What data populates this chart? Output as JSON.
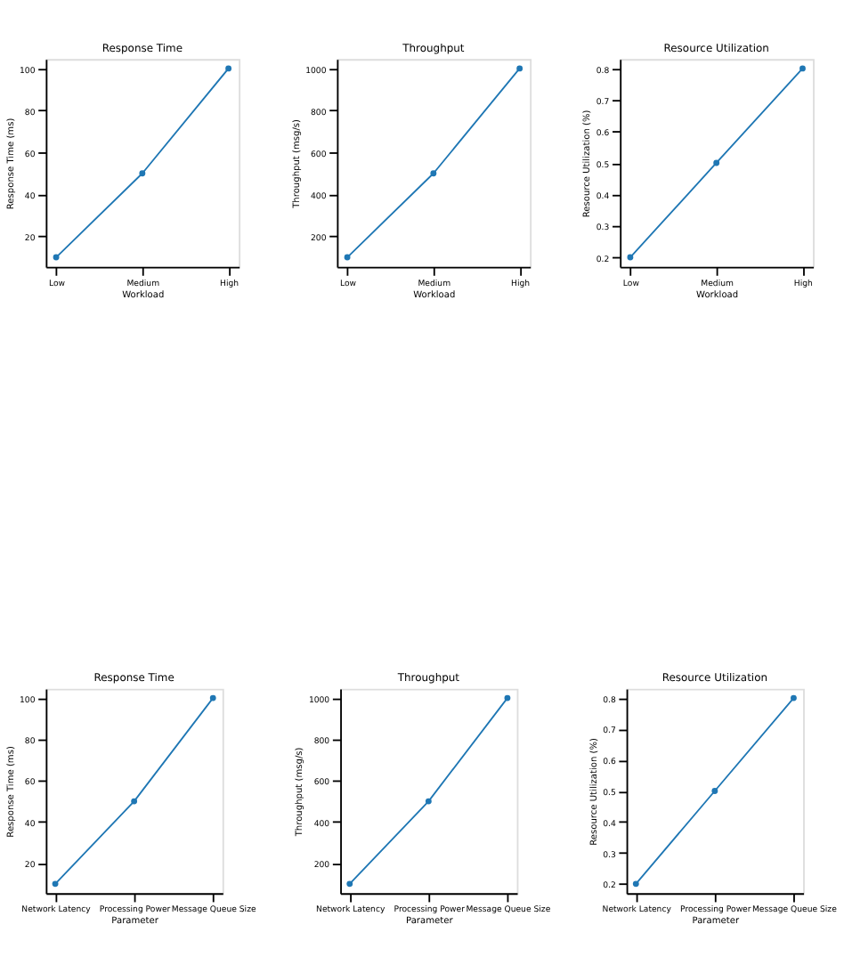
{
  "chart_data": [
    {
      "type": "line",
      "title": "Response Time",
      "xlabel": "Workload",
      "ylabel": "Response Time (ms)",
      "categories": [
        "Low",
        "Medium",
        "High"
      ],
      "series": [
        {
          "color": "#1f77b4",
          "values": [
            10,
            50,
            100
          ]
        }
      ],
      "ylim": [
        5.5,
        104.5
      ],
      "yticks": [
        20,
        40,
        60,
        80,
        100
      ],
      "marker": "circle",
      "line_style": "solid",
      "grid": false
    },
    {
      "type": "line",
      "title": "Throughput",
      "xlabel": "Workload",
      "ylabel": "Throughput (msg/s)",
      "categories": [
        "Low",
        "Medium",
        "High"
      ],
      "series": [
        {
          "color": "#1f77b4",
          "values": [
            100,
            500,
            1000
          ]
        }
      ],
      "ylim": [
        55,
        1045
      ],
      "yticks": [
        200,
        400,
        600,
        800,
        1000
      ],
      "marker": "circle",
      "line_style": "solid",
      "grid": false
    },
    {
      "type": "line",
      "title": "Resource Utilization",
      "xlabel": "Workload",
      "ylabel": "Resource Utilization (%)",
      "categories": [
        "Low",
        "Medium",
        "High"
      ],
      "series": [
        {
          "color": "#1f77b4",
          "values": [
            0.2,
            0.5,
            0.8
          ]
        }
      ],
      "ylim": [
        0.17,
        0.83
      ],
      "yticks": [
        0.2,
        0.3,
        0.4,
        0.5,
        0.6,
        0.7,
        0.8
      ],
      "marker": "circle",
      "line_style": "solid",
      "grid": false
    },
    {
      "type": "line",
      "title": "Response Time",
      "xlabel": "Parameter",
      "ylabel": "Response Time (ms)",
      "categories": [
        "Network Latency",
        "Processing Power",
        "Message Queue Size"
      ],
      "series": [
        {
          "color": "#1f77b4",
          "values": [
            10,
            50,
            100
          ]
        }
      ],
      "ylim": [
        5.5,
        104.5
      ],
      "yticks": [
        20,
        40,
        60,
        80,
        100
      ],
      "marker": "circle",
      "line_style": "solid",
      "grid": false
    },
    {
      "type": "line",
      "title": "Throughput",
      "xlabel": "Parameter",
      "ylabel": "Throughput (msg/s)",
      "categories": [
        "Network Latency",
        "Processing Power",
        "Message Queue Size"
      ],
      "series": [
        {
          "color": "#1f77b4",
          "values": [
            100,
            500,
            1000
          ]
        }
      ],
      "ylim": [
        55,
        1045
      ],
      "yticks": [
        200,
        400,
        600,
        800,
        1000
      ],
      "marker": "circle",
      "line_style": "solid",
      "grid": false
    },
    {
      "type": "line",
      "title": "Resource Utilization",
      "xlabel": "Parameter",
      "ylabel": "Resource Utilization (%)",
      "categories": [
        "Network Latency",
        "Processing Power",
        "Message Queue Size"
      ],
      "series": [
        {
          "color": "#1f77b4",
          "values": [
            0.2,
            0.5,
            0.8
          ]
        }
      ],
      "ylim": [
        0.17,
        0.83
      ],
      "yticks": [
        0.2,
        0.3,
        0.4,
        0.5,
        0.6,
        0.7,
        0.8
      ],
      "marker": "circle",
      "line_style": "solid",
      "grid": false
    }
  ]
}
